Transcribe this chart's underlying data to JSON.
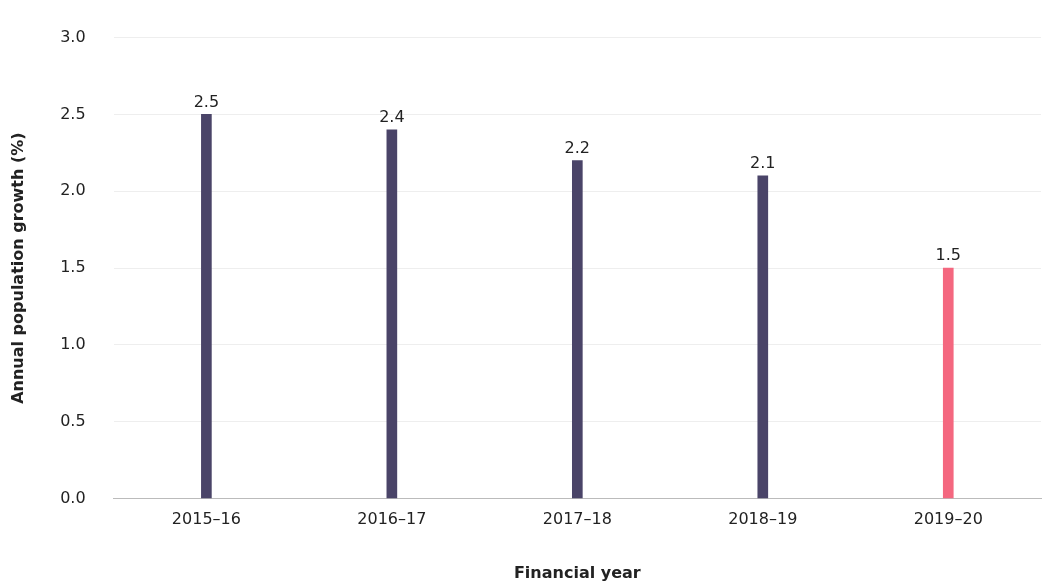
{
  "chart_data": {
    "type": "bar",
    "xlabel": "Financial year",
    "ylabel": "Annual population growth (%)",
    "categories": [
      "2015–16",
      "2016–17",
      "2017–18",
      "2018–19",
      "2019–20"
    ],
    "values": [
      2.5,
      2.4,
      2.2,
      2.1,
      1.5
    ],
    "colors": [
      "#4a4468",
      "#4a4468",
      "#4a4468",
      "#4a4468",
      "#f4677f"
    ],
    "ylim": [
      0,
      3
    ],
    "yticks": [
      {
        "value": 0,
        "label": "0.0"
      },
      {
        "value": 0.5,
        "label": "0.5"
      },
      {
        "value": 1,
        "label": "1.0"
      },
      {
        "value": 1.5,
        "label": "1.5"
      },
      {
        "value": 2,
        "label": "2.0"
      },
      {
        "value": 2.5,
        "label": "2.5"
      },
      {
        "value": 3,
        "label": "3.0"
      }
    ],
    "grid": "y",
    "legend": false,
    "data_labels": true
  }
}
